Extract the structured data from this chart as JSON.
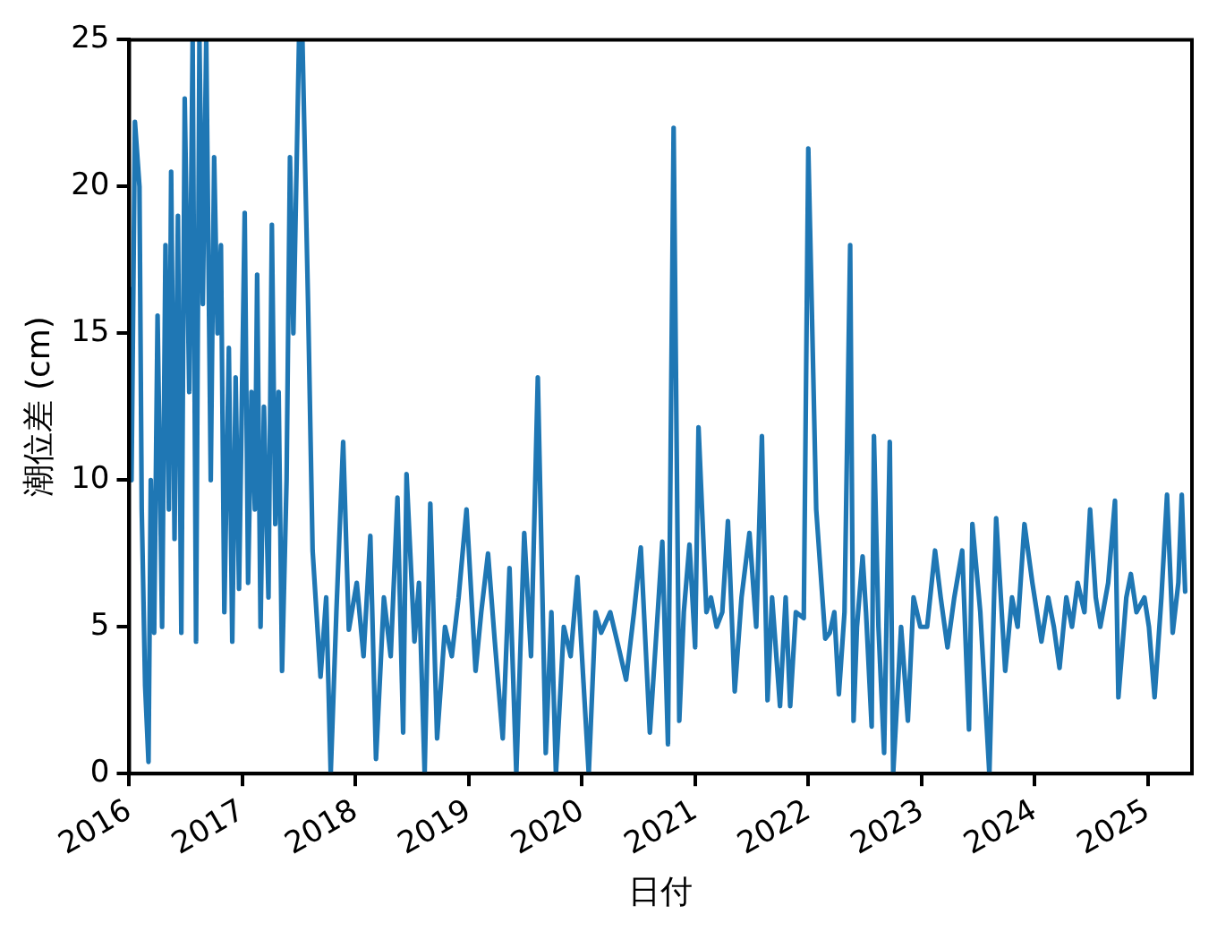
{
  "chart_data": {
    "type": "line",
    "xlabel": "日付",
    "ylabel": "潮位差 (cm)",
    "xlim": [
      2016,
      2025.39
    ],
    "xticks": [
      2016,
      2017,
      2018,
      2019,
      2020,
      2021,
      2022,
      2023,
      2024,
      2025
    ],
    "ylim": [
      0,
      25
    ],
    "yticks": [
      0,
      5,
      10,
      15,
      20,
      25
    ],
    "grid": false,
    "legend": false,
    "marker": "none",
    "line_style": "solid",
    "series": [
      {
        "color": "#1f77b4",
        "x": [
          2016.01,
          2016.02,
          2016.05,
          2016.09,
          2016.11,
          2016.14,
          2016.17,
          2016.19,
          2016.22,
          2016.25,
          2016.29,
          2016.32,
          2016.35,
          2016.37,
          2016.4,
          2016.43,
          2016.46,
          2016.49,
          2016.53,
          2016.56,
          2016.59,
          2016.62,
          2016.65,
          2016.68,
          2016.72,
          2016.75,
          2016.78,
          2016.81,
          2016.84,
          2016.88,
          2016.91,
          2016.94,
          2016.97,
          2017.02,
          2017.05,
          2017.08,
          2017.11,
          2017.13,
          2017.16,
          2017.19,
          2017.23,
          2017.26,
          2017.29,
          2017.32,
          2017.35,
          2017.39,
          2017.42,
          2017.45,
          2017.5,
          2017.53,
          2017.58,
          2017.62,
          2017.69,
          2017.74,
          2017.78,
          2017.83,
          2017.89,
          2017.94,
          2018.01,
          2018.07,
          2018.13,
          2018.18,
          2018.25,
          2018.31,
          2018.37,
          2018.42,
          2018.45,
          2018.52,
          2018.56,
          2018.61,
          2018.66,
          2018.72,
          2018.79,
          2018.85,
          2018.91,
          2018.98,
          2019.06,
          2019.11,
          2019.17,
          2019.23,
          2019.3,
          2019.36,
          2019.42,
          2019.49,
          2019.55,
          2019.61,
          2019.68,
          2019.73,
          2019.77,
          2019.84,
          2019.9,
          2019.96,
          2020.06,
          2020.12,
          2020.17,
          2020.25,
          2020.33,
          2020.39,
          2020.46,
          2020.52,
          2020.6,
          2020.67,
          2020.71,
          2020.76,
          2020.81,
          2020.86,
          2020.9,
          2020.95,
          2021.0,
          2021.03,
          2021.1,
          2021.14,
          2021.19,
          2021.24,
          2021.29,
          2021.35,
          2021.41,
          2021.48,
          2021.54,
          2021.59,
          2021.64,
          2021.68,
          2021.75,
          2021.8,
          2021.84,
          2021.89,
          2021.96,
          2022.0,
          2022.07,
          2022.15,
          2022.19,
          2022.23,
          2022.27,
          2022.32,
          2022.37,
          2022.4,
          2022.43,
          2022.48,
          2022.51,
          2022.56,
          2022.58,
          2022.62,
          2022.67,
          2022.72,
          2022.75,
          2022.82,
          2022.88,
          2022.93,
          2022.99,
          2023.05,
          2023.12,
          2023.17,
          2023.23,
          2023.29,
          2023.36,
          2023.42,
          2023.45,
          2023.52,
          2023.6,
          2023.66,
          2023.74,
          2023.8,
          2023.85,
          2023.91,
          2023.98,
          2024.06,
          2024.12,
          2024.17,
          2024.22,
          2024.28,
          2024.33,
          2024.38,
          2024.44,
          2024.49,
          2024.54,
          2024.58,
          2024.65,
          2024.71,
          2024.74,
          2024.81,
          2024.85,
          2024.9,
          2024.97,
          2025.01,
          2025.06,
          2025.12,
          2025.17,
          2025.22,
          2025.27,
          2025.3,
          2025.33
        ],
        "values": [
          16.5,
          10,
          22.2,
          20,
          9,
          3,
          0.4,
          10,
          4.8,
          15.6,
          5,
          18,
          9,
          20.5,
          8,
          19,
          4.8,
          23,
          13,
          25,
          4.5,
          25,
          16,
          25,
          10,
          21,
          15,
          18,
          5.5,
          14.5,
          4.5,
          13.5,
          6.3,
          19.1,
          6.5,
          13,
          9,
          17,
          5,
          12.5,
          6,
          18.7,
          8.5,
          13,
          3.5,
          10,
          21,
          15,
          25,
          25,
          16,
          7.6,
          3.3,
          6,
          0,
          5.5,
          11.3,
          4.9,
          6.5,
          4,
          8.1,
          0.5,
          6,
          4,
          9.4,
          1.4,
          10.2,
          4.5,
          6.5,
          0,
          9.2,
          1.2,
          5,
          4,
          6,
          9,
          3.5,
          5.5,
          7.5,
          4.5,
          1.2,
          7,
          0,
          8.2,
          4,
          13.5,
          0.7,
          5.5,
          0,
          5,
          4,
          6.7,
          0,
          5.5,
          4.8,
          5.5,
          4.2,
          3.2,
          5.5,
          7.7,
          1.4,
          5.5,
          7.9,
          1,
          22,
          1.8,
          5.5,
          7.8,
          4.3,
          11.8,
          5.5,
          6,
          5,
          5.5,
          8.6,
          2.8,
          6,
          8.2,
          5,
          11.5,
          2.5,
          6,
          2.3,
          6,
          2.3,
          5.5,
          5.3,
          21.3,
          9,
          4.6,
          4.8,
          5.5,
          2.7,
          5.5,
          18,
          1.8,
          5,
          7.4,
          5.5,
          1.6,
          11.5,
          5,
          0.7,
          11.3,
          0,
          5,
          1.8,
          6,
          5,
          5,
          7.6,
          6,
          4.3,
          6,
          7.6,
          1.5,
          8.5,
          5.5,
          0,
          8.7,
          3.5,
          6,
          5,
          8.5,
          6.5,
          4.5,
          6,
          5,
          3.6,
          6,
          5,
          6.5,
          5.5,
          9,
          6,
          5,
          6.5,
          9.3,
          2.6,
          6,
          6.8,
          5.5,
          6,
          5,
          2.6,
          6,
          9.5,
          4.8,
          6.5,
          9.5,
          6.2
        ]
      }
    ]
  }
}
